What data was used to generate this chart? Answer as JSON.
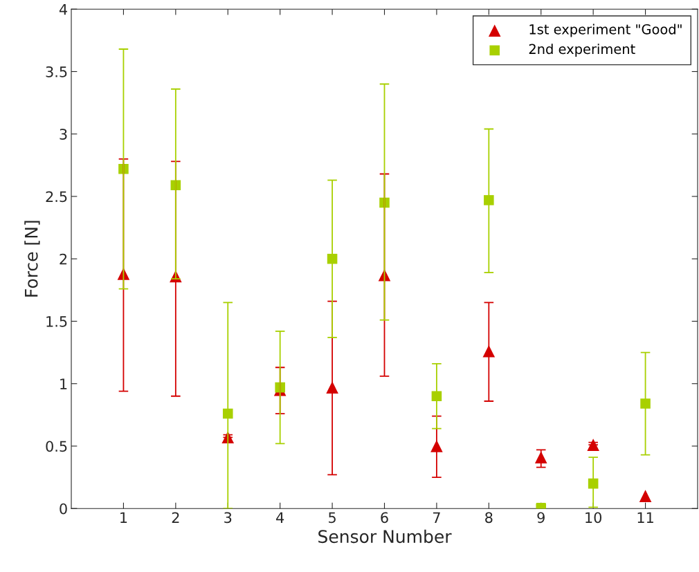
{
  "chart_data": {
    "type": "scatter",
    "xlabel": "Sensor Number",
    "ylabel": "Force [N]",
    "x": [
      1,
      2,
      3,
      4,
      5,
      6,
      7,
      8,
      9,
      10,
      11
    ],
    "xlim": [
      0,
      12
    ],
    "xticks": [
      1,
      2,
      3,
      4,
      5,
      6,
      7,
      8,
      9,
      10,
      11
    ],
    "ylim": [
      0,
      4
    ],
    "yticks": [
      0,
      0.5,
      1,
      1.5,
      2,
      2.5,
      3,
      3.5,
      4
    ],
    "grid": false,
    "legend": "top right",
    "series": [
      {
        "name": "1st experiment \"Good\"",
        "color": "#d40000",
        "marker": "triangle",
        "values": [
          1.88,
          1.86,
          0.57,
          0.95,
          0.97,
          1.87,
          0.5,
          1.26,
          0.41,
          0.51,
          0.1
        ],
        "errors": [
          [
            0.94,
            2.8
          ],
          [
            0.9,
            2.78
          ],
          [
            0.57,
            0.59
          ],
          [
            0.76,
            1.13
          ],
          [
            0.27,
            1.66
          ],
          [
            1.06,
            2.68
          ],
          [
            0.25,
            0.74
          ],
          [
            0.86,
            1.65
          ],
          [
            0.33,
            0.47
          ],
          [
            0.51,
            0.53
          ],
          null
        ]
      },
      {
        "name": "2nd experiment",
        "color": "#a8d000",
        "marker": "square",
        "values": [
          2.72,
          2.59,
          0.76,
          0.97,
          2.0,
          2.45,
          0.9,
          2.47,
          0.0,
          0.2,
          0.84
        ],
        "errors": [
          [
            1.76,
            3.68
          ],
          [
            1.84,
            3.36
          ],
          [
            0.0,
            1.65
          ],
          [
            0.52,
            1.42
          ],
          [
            1.37,
            2.63
          ],
          [
            1.51,
            3.4
          ],
          [
            0.64,
            1.16
          ],
          [
            1.89,
            3.04
          ],
          [
            0.0,
            0.04
          ],
          [
            0.01,
            0.41
          ],
          [
            0.43,
            1.25
          ]
        ]
      }
    ]
  }
}
